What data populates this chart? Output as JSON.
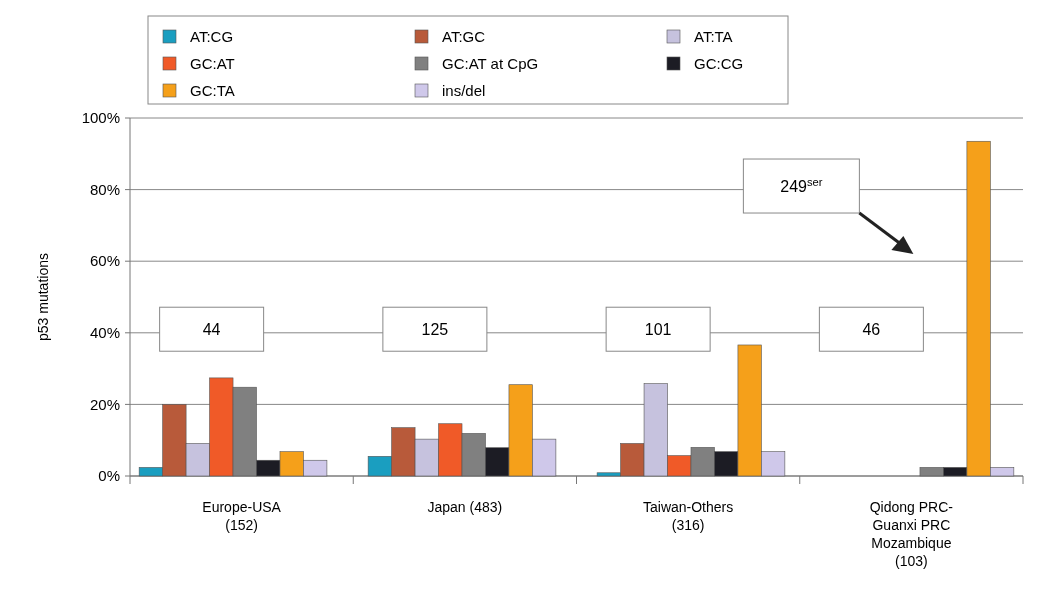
{
  "chart_data": {
    "type": "bar",
    "ylabel": "p53 mutations",
    "categories": [
      "Europe-USA\n(152)",
      "Japan (483)",
      "Taiwan-Others\n(316)",
      "Qidong PRC-\nGuanxi PRC\nMozambique\n(103)"
    ],
    "series": [
      {
        "name": "AT:CG",
        "color": "#1a9ec0",
        "values": [
          2.4,
          5.5,
          0.9,
          0
        ]
      },
      {
        "name": "AT:GC",
        "color": "#b85a3a",
        "values": [
          20,
          13.5,
          9.1,
          0
        ]
      },
      {
        "name": "AT:TA",
        "color": "#c6c2de",
        "values": [
          9.1,
          10.3,
          25.8,
          0
        ]
      },
      {
        "name": "GC:AT",
        "color": "#f05a28",
        "values": [
          27.4,
          14.6,
          5.7,
          0
        ]
      },
      {
        "name": "GC:AT at CpG",
        "color": "#808080",
        "values": [
          24.8,
          11.9,
          8,
          2.4
        ]
      },
      {
        "name": "GC:CG",
        "color": "#1c1c24",
        "values": [
          4.4,
          7.9,
          6.8,
          2.4
        ]
      },
      {
        "name": "GC:TA",
        "color": "#f5a01a",
        "values": [
          6.8,
          25.5,
          36.6,
          93.5
        ]
      },
      {
        "name": "ins/del",
        "color": "#cfc8ea",
        "values": [
          4.4,
          10.3,
          6.8,
          2.4
        ]
      }
    ],
    "ylim": [
      0,
      100
    ],
    "yticks": [
      {
        "value": 0,
        "label": "0%"
      },
      {
        "value": 20,
        "label": "20%"
      },
      {
        "value": 40,
        "label": "40%"
      },
      {
        "value": 60,
        "label": "60%"
      },
      {
        "value": 80,
        "label": "80%"
      },
      {
        "value": 100,
        "label": "100%"
      }
    ],
    "grid": "y",
    "legend": "top",
    "annotations": [
      "44",
      "125",
      "101",
      "46",
      "249$^{ser}$"
    ]
  }
}
